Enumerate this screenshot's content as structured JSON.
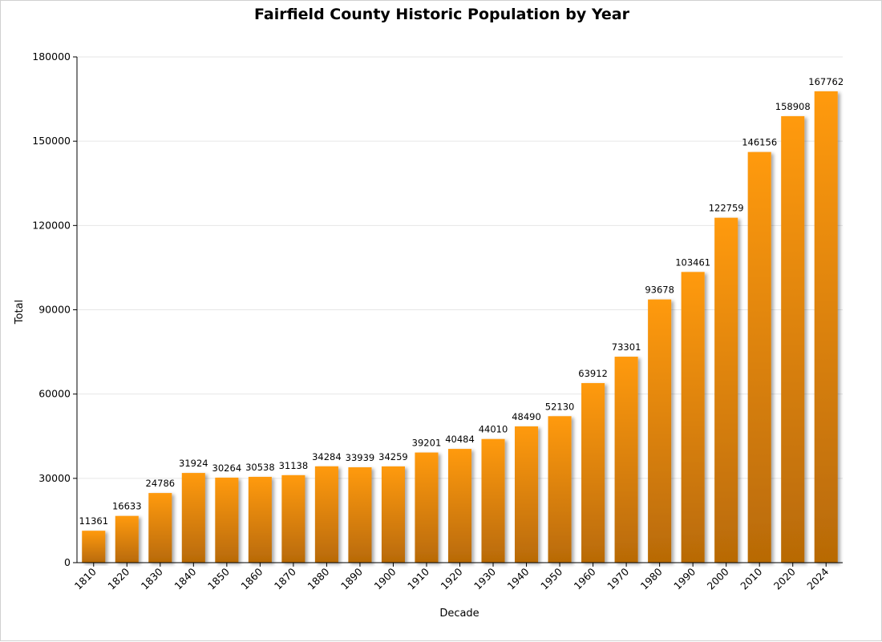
{
  "chart_data": {
    "type": "bar",
    "title": "Fairfield County Historic Population by Year",
    "xlabel": "Decade",
    "ylabel": "Total",
    "categories": [
      "1810",
      "1820",
      "1830",
      "1840",
      "1850",
      "1860",
      "1870",
      "1880",
      "1890",
      "1900",
      "1910",
      "1920",
      "1930",
      "1940",
      "1950",
      "1960",
      "1970",
      "1980",
      "1990",
      "2000",
      "2010",
      "2020",
      "2024"
    ],
    "values": [
      11361,
      16633,
      24786,
      31924,
      30264,
      30538,
      31138,
      34284,
      33939,
      34259,
      39201,
      40484,
      44010,
      48490,
      52130,
      63912,
      73301,
      93678,
      103461,
      122759,
      146156,
      158908,
      167762
    ],
    "ylim": [
      0,
      180000
    ],
    "yticks": [
      0,
      30000,
      60000,
      90000,
      120000,
      150000,
      180000
    ],
    "grid": true,
    "legend": "none",
    "data_labels": true,
    "colors": {
      "bar_top": "#ff9a10",
      "bar_bottom": "#b86a06",
      "grid": "#e6e6e6",
      "axis": "#000000"
    }
  }
}
